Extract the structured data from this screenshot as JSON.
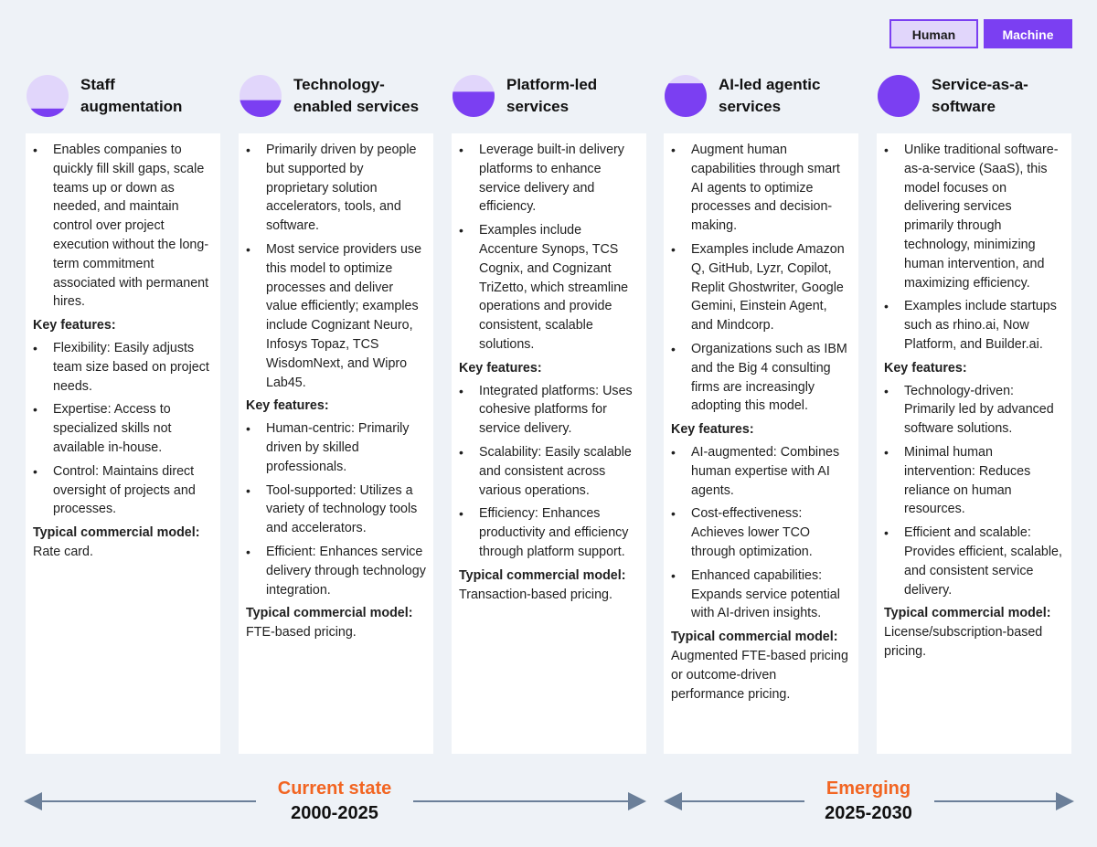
{
  "legend": {
    "human": "Human",
    "machine": "Machine"
  },
  "colors": {
    "human": "#e1d6fb",
    "machine": "#7b3ff2",
    "accent": "#f26522",
    "arrow": "#6b7f99"
  },
  "columns": [
    {
      "title_l1": "Staff",
      "title_l2": "augmentation",
      "machine_share": 0.2,
      "intro": "Enables companies to quickly fill skill gaps, scale teams up or down as needed, and maintain control over project execution without the long-term commitment associated with permanent hires.",
      "intro_extra": [],
      "key_label": "Key features:",
      "features": [
        "Flexibility: Easily adjusts team size based on project needs.",
        "Expertise: Access to specialized skills not available in-house.",
        "Control: Maintains direct oversight of projects and processes."
      ],
      "tcm_label": "Typical commercial model:",
      "tcm_value": "Rate card."
    },
    {
      "title_l1": "Technology-",
      "title_l2": "enabled services",
      "machine_share": 0.4,
      "intro": "Primarily driven by people but supported by proprietary solution accelerators, tools, and software.",
      "intro_extra": [
        "Most service providers use this model to optimize processes and deliver value efficiently; examples include Cognizant Neuro, Infosys Topaz, TCS WisdomNext, and Wipro Lab45."
      ],
      "key_label": "Key features:",
      "features": [
        "Human-centric: Primarily driven by skilled professionals.",
        "Tool-supported: Utilizes a variety of technology tools and accelerators.",
        "Efficient: Enhances service delivery through technology integration."
      ],
      "tcm_label": "Typical commercial model:",
      "tcm_value": "FTE-based pricing."
    },
    {
      "title_l1": "Platform-led",
      "title_l2": "services",
      "machine_share": 0.6,
      "intro": "Leverage built-in delivery platforms to enhance service delivery and efficiency.",
      "intro_extra": [
        "Examples include Accenture Synops, TCS Cognix, and Cognizant TriZetto, which streamline operations and provide consistent, scalable solutions."
      ],
      "key_label": "Key features:",
      "features": [
        "Integrated platforms: Uses cohesive platforms for service delivery.",
        "Scalability: Easily scalable and consistent across various operations.",
        "Efficiency: Enhances productivity and efficiency through platform support."
      ],
      "tcm_label": "Typical commercial model:",
      "tcm_value": "Transaction-based pricing."
    },
    {
      "title_l1": "AI-led agentic",
      "title_l2": "services",
      "machine_share": 0.8,
      "intro": "Augment human capabilities through smart AI agents to optimize processes and decision-making.",
      "intro_extra": [
        "Examples include Amazon Q, GitHub, Lyzr, Copilot, Replit Ghostwriter, Google Gemini, Einstein Agent, and Mindcorp.",
        "Organizations such as IBM and the Big 4 consulting firms are increasingly adopting this model."
      ],
      "key_label": "Key features:",
      "features": [
        "AI-augmented: Combines human expertise with AI agents.",
        "Cost-effectiveness: Achieves lower TCO through optimization.",
        "Enhanced capabilities: Expands service potential with AI-driven insights."
      ],
      "tcm_label": "Typical commercial model:",
      "tcm_value": "Augmented FTE-based pricing or outcome-driven performance pricing."
    },
    {
      "title_l1": "Service-as-a-",
      "title_l2": "software",
      "machine_share": 1.0,
      "intro": "Unlike traditional software-as-a-service (SaaS), this model focuses on delivering services primarily through technology, minimizing human intervention, and maximizing efficiency.",
      "intro_extra": [
        "Examples include startups such as rhino.ai, Now Platform, and Builder.ai."
      ],
      "key_label": "Key features:",
      "features": [
        "Technology-driven: Primarily led by advanced software solutions.",
        "Minimal human intervention: Reduces reliance on human resources.",
        "Efficient and scalable: Provides efficient, scalable, and consistent service delivery."
      ],
      "tcm_label": "Typical commercial model:",
      "tcm_value": "License/subscription-based pricing."
    }
  ],
  "timeline": {
    "current": {
      "label": "Current state",
      "years": "2000-2025"
    },
    "emerging": {
      "label": "Emerging",
      "years": "2025-2030"
    }
  }
}
